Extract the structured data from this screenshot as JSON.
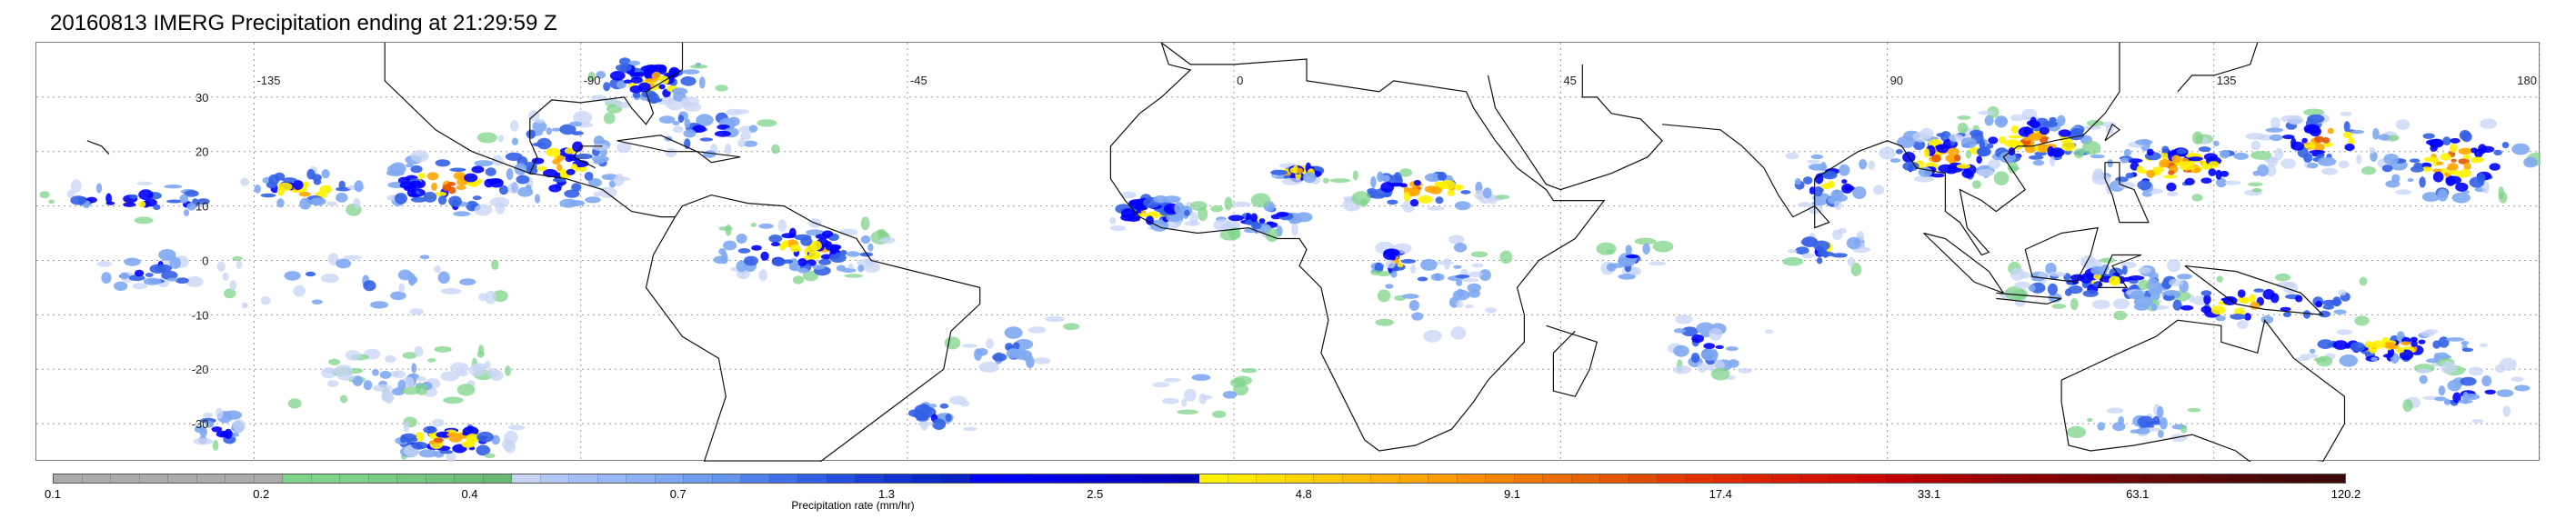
{
  "title": "20160813 IMERG Precipitation ending at 21:29:59 Z",
  "map": {
    "longitude_labels": [
      "-135",
      "-90",
      "-45",
      "0",
      "45",
      "90",
      "135",
      "180"
    ],
    "latitude_labels": [
      "30",
      "20",
      "10",
      "0",
      "-10",
      "-20",
      "-30"
    ],
    "ocean_color": "#ffffff",
    "coastline_color": "#111111",
    "grid_style": "dotted gray"
  },
  "colorbar": {
    "label": "Precipitation rate (mm/hr)",
    "ticks": [
      "0.1",
      "0.2",
      "0.4",
      "0.7",
      "1.3",
      "2.5",
      "4.8",
      "9.1",
      "17.4",
      "33.1",
      "63.1",
      "120.2"
    ],
    "colors": [
      "#ababab",
      "#ababab",
      "#ababab",
      "#ababab",
      "#ababab",
      "#ababab",
      "#ababab",
      "#ababab",
      "#7fd48a",
      "#7fd48a",
      "#7ed088",
      "#7bcc85",
      "#77c782",
      "#73c27e",
      "#6fbd7a",
      "#6ab876",
      "#c8d4f5",
      "#b3c8f5",
      "#a3bff7",
      "#97b8f5",
      "#8bb0f3",
      "#7fa8f2",
      "#6f9ef1",
      "#6495ee",
      "#5080ee",
      "#4270ea",
      "#3360e6",
      "#2550df",
      "#1a3fd8",
      "#1032d3",
      "#0829cc",
      "#0622c4",
      "#0000ff",
      "#0000f5",
      "#0000eb",
      "#0000e0",
      "#0000d6",
      "#0000cc",
      "#0000c2",
      "#0000b8",
      "#fff200",
      "#ffeb00",
      "#ffe000",
      "#ffd500",
      "#ffca00",
      "#ffbe00",
      "#ffb200",
      "#ffa600",
      "#ff9a00",
      "#fa8f00",
      "#f58400",
      "#f07800",
      "#ec6d00",
      "#e86200",
      "#e35700",
      "#df4c00",
      "#e63900",
      "#e33200",
      "#e02a00",
      "#dd2300",
      "#d91c00",
      "#d51500",
      "#d10e00",
      "#cc0800",
      "#c00000",
      "#b20000",
      "#a60000",
      "#9c0000",
      "#920000",
      "#880000",
      "#800000",
      "#780000",
      "#6e0808",
      "#680808",
      "#600808",
      "#580808",
      "#500808",
      "#480808",
      "#420808",
      "#3c0808"
    ],
    "tick_positions_pct": [
      0,
      9.09,
      18.18,
      27.27,
      36.36,
      45.45,
      54.55,
      63.64,
      72.73,
      81.82,
      90.91,
      100
    ]
  },
  "chart_data": {
    "type": "heatmap",
    "title": "20160813 IMERG Precipitation ending at 21:29:59 Z",
    "xlabel": "",
    "ylabel": "",
    "colorbar_label": "Precipitation rate (mm/hr)",
    "colorbar_ticks": [
      0.1,
      0.2,
      0.4,
      0.7,
      1.3,
      2.5,
      4.8,
      9.1,
      17.4,
      33.1,
      63.1,
      120.2
    ],
    "x_ticks": [
      -135,
      -90,
      -45,
      0,
      45,
      90,
      135,
      180
    ],
    "y_ticks": [
      30,
      20,
      10,
      0,
      -10,
      -20,
      -30
    ],
    "xlim": [
      -165,
      180
    ],
    "ylim": [
      -37,
      40
    ],
    "units": "mm/hr"
  }
}
